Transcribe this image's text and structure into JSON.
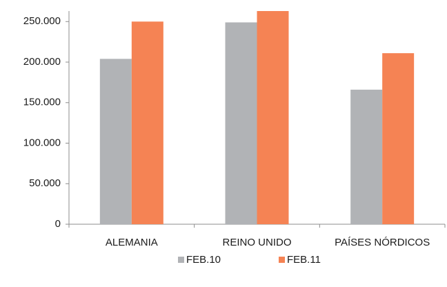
{
  "chart_data": {
    "type": "bar",
    "categories": [
      "ALEMANIA",
      "REINO UNIDO",
      "PAÍSES NÓRDICOS"
    ],
    "series": [
      {
        "name": "FEB.10",
        "color": "#b1b3b6",
        "values": [
          204000,
          249000,
          166000
        ]
      },
      {
        "name": "FEB.11",
        "color": "#f58354",
        "values": [
          250000,
          263000,
          211000
        ]
      }
    ],
    "ylim": [
      0,
      263000
    ],
    "yticks": [
      0,
      {
        "value": 50000,
        "label": "50.000"
      },
      {
        "value": 100000,
        "label": "100.000"
      },
      {
        "value": 150000,
        "label": "150.000"
      },
      {
        "value": 200000,
        "label": "200.000"
      },
      {
        "value": 250000,
        "label": "250.000"
      }
    ],
    "grid": false,
    "legend": "bottom"
  }
}
